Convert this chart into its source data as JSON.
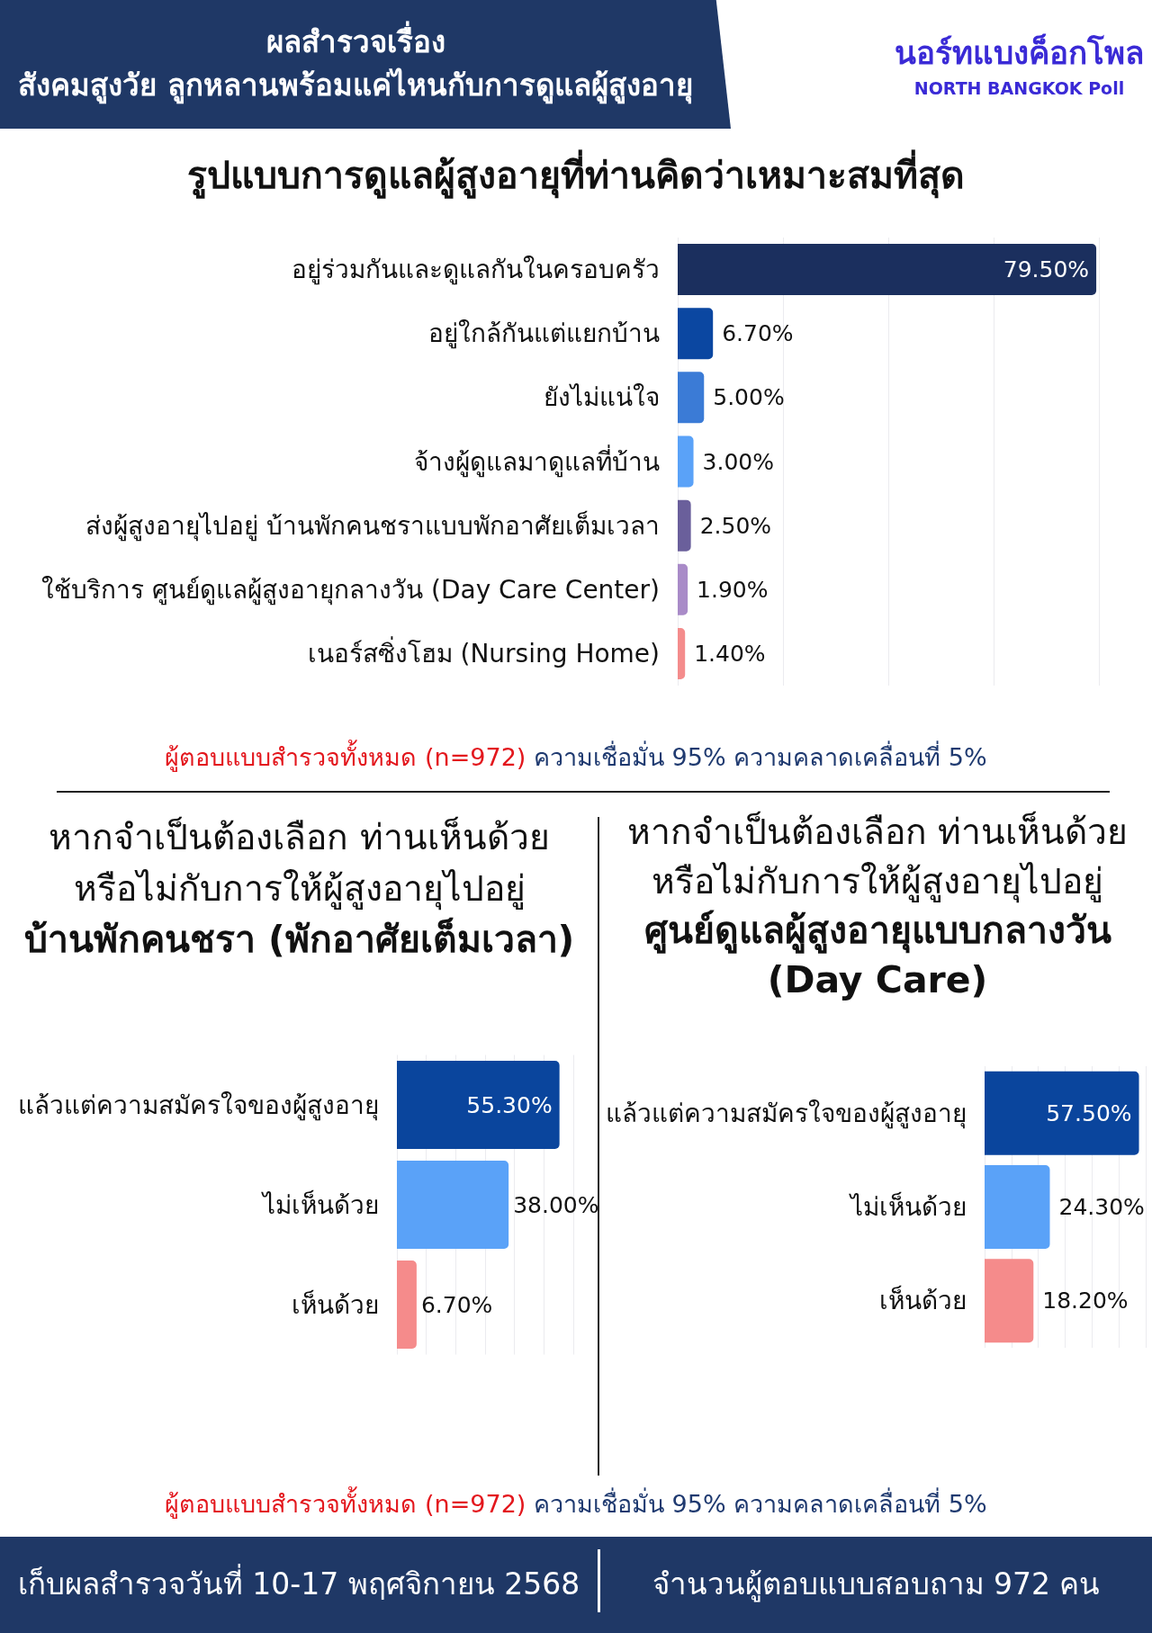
{
  "chart_data": [
    {
      "type": "other",
      "title": "ผลสำรวจเรื่อง",
      "subtitle": "สังคมสูงวัย ลูกหลานพร้อมแค่ไหนกับการดูแลผู้สูงอายุ",
      "annotations": [
        "นอร์ทแบงค็อกโพล",
        "NORTH BANGKOK Poll"
      ]
    },
    {
      "type": "bar",
      "orientation": "horizontal",
      "title": "รูปแบบการดูแลผู้สูงอายุที่ท่านคิดว่าเหมาะสมที่สุด",
      "categories": [
        "อยู่ร่วมกันและดูแลกันในครอบครัว",
        "อยู่ใกล้กันแต่แยกบ้าน",
        "ยังไม่แน่ใจ",
        "จ้างผู้ดูแลมาดูแลที่บ้าน",
        "ส่งผู้สูงอายุไปอยู่ บ้านพักคนชราแบบพักอาศัยเต็มเวลา",
        "ใช้บริการ ศูนย์ดูแลผู้สูงอายุกลางวัน (Day Care Center)",
        "เนอร์สซิ่งโฮม (Nursing Home)"
      ],
      "values": [
        79.5,
        6.7,
        5.0,
        3.0,
        2.5,
        1.9,
        1.4
      ],
      "colors": [
        "#1b2f5e",
        "#0b47a1",
        "#3b7bd6",
        "#5aa2f8",
        "#6a5f9b",
        "#a98bc8",
        "#f48c8c"
      ],
      "value_labels": [
        "79.50%",
        "6.70%",
        "5.00%",
        "3.00%",
        "2.50%",
        "1.90%",
        "1.40%"
      ],
      "xlim": [
        0,
        80
      ],
      "xticks": [
        {
          "value": 0,
          "label": null
        },
        {
          "value": 20,
          "label": null
        },
        {
          "value": 40,
          "label": null
        },
        {
          "value": 60,
          "label": null
        },
        {
          "value": 80,
          "label": null
        }
      ],
      "grid": "x",
      "tick_labels": "y",
      "annotations": [
        "ผู้ตอบแบบสำรวจทั้งหมด (n=972)",
        "ความเชื่อมั่น 95% ความคลาดเคลื่อนที่ 5%"
      ]
    },
    {
      "type": "bar",
      "orientation": "horizontal",
      "title": "หากจำเป็นต้องเลือก ท่านเห็นด้วยหรือไม่กับการให้ผู้สูงอายุไปอยู่",
      "subtitle": "บ้านพักคนชรา (พักอาศัยเต็มเวลา)",
      "categories": [
        "แล้วแต่ความสมัครใจของผู้สูงอายุ",
        "ไม่เห็นด้วย",
        "เห็นด้วย"
      ],
      "values": [
        55.3,
        38.0,
        6.7
      ],
      "colors": [
        "#0a459d",
        "#5aa2f8",
        "#f58b8b"
      ],
      "value_labels": [
        "55.30%",
        "38.00%",
        "6.70%"
      ],
      "xlim": [
        0,
        60
      ],
      "xticks": [
        {
          "value": 0,
          "label": null
        },
        {
          "value": 10,
          "label": null
        },
        {
          "value": 20,
          "label": null
        },
        {
          "value": 30,
          "label": null
        },
        {
          "value": 40,
          "label": null
        },
        {
          "value": 50,
          "label": null
        },
        {
          "value": 60,
          "label": null
        }
      ],
      "grid": "x",
      "tick_labels": "y"
    },
    {
      "type": "bar",
      "orientation": "horizontal",
      "title": "หากจำเป็นต้องเลือก ท่านเห็นด้วยหรือไม่กับการให้ผู้สูงอายุไปอยู่",
      "subtitle": "ศูนย์ดูแลผู้สูงอายุแบบกลางวัน (Day Care)",
      "categories": [
        "แล้วแต่ความสมัครใจของผู้สูงอายุ",
        "ไม่เห็นด้วย",
        "เห็นด้วย"
      ],
      "values": [
        57.5,
        24.3,
        18.2
      ],
      "colors": [
        "#0a459d",
        "#5aa2f8",
        "#f58b8b"
      ],
      "value_labels": [
        "57.50%",
        "24.30%",
        "18.20%"
      ],
      "xlim": [
        0,
        60
      ],
      "xticks": [
        {
          "value": 0,
          "label": null
        },
        {
          "value": 10,
          "label": null
        },
        {
          "value": 20,
          "label": null
        },
        {
          "value": 30,
          "label": null
        },
        {
          "value": 40,
          "label": null
        },
        {
          "value": 50,
          "label": null
        },
        {
          "value": 60,
          "label": null
        }
      ],
      "grid": "x",
      "tick_labels": "y"
    },
    {
      "type": "other",
      "annotations": [
        "ผู้ตอบแบบสำรวจทั้งหมด (n=972)",
        "ความเชื่อมั่น 95% ความคลาดเคลื่อนที่ 5%",
        "เก็บผลสำรวจวันที่ 10-17 พฤศจิกายน 2568",
        "จำนวนผู้ตอบแบบสอบถาม 972 คน"
      ]
    }
  ]
}
